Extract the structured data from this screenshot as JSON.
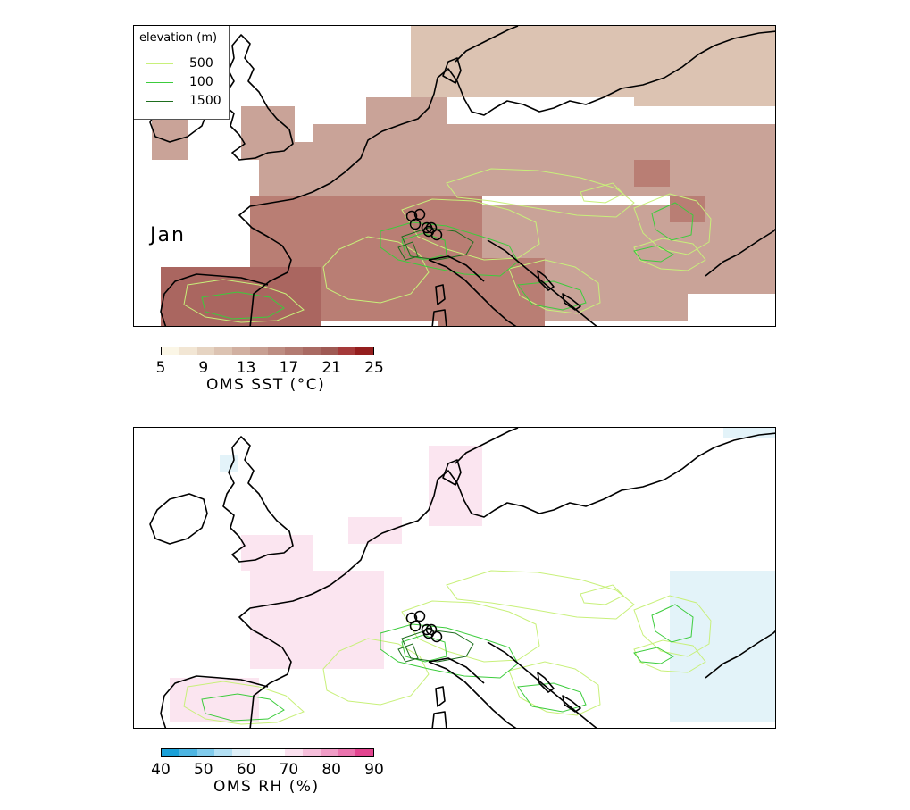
{
  "top_panel": {
    "month_label": "Jan",
    "legend": {
      "title": "elevation (m)",
      "entries": [
        {
          "label": "500",
          "color": "#c8f07a"
        },
        {
          "label": "100",
          "color": "#3ccc3c"
        },
        {
          "label": "1500",
          "color": "#1e6e1e"
        }
      ]
    },
    "colorbar": {
      "label": "OMS SST (°C)",
      "ticks": [
        "5",
        "9",
        "13",
        "17",
        "21",
        "25"
      ],
      "colors": [
        "#fbf6e6",
        "#f2e6d4",
        "#e6d4c2",
        "#dcc3b2",
        "#d1b0a1",
        "#c79f92",
        "#bd8d82",
        "#b37b72",
        "#a96a63",
        "#9f5a54",
        "#a53a3a",
        "#941e1e"
      ]
    }
  },
  "bottom_panel": {
    "colorbar": {
      "label": "OMS RH (%)",
      "ticks": [
        "40",
        "50",
        "60",
        "70",
        "80",
        "90"
      ],
      "colors": [
        "#1aa0d8",
        "#4db5e2",
        "#80cbec",
        "#b3e0f4",
        "#dff0f8",
        "#ffffff",
        "#ffffff",
        "#fbe1ef",
        "#f6bfdb",
        "#f09cc6",
        "#ea74ae",
        "#e2448f"
      ]
    }
  },
  "colors": {
    "sst_tile": "#c9a398",
    "sst_tile_light": "#dcc3b2",
    "sst_tile_dark": "#b97e74",
    "sst_tile_darker": "#aa6660",
    "rh_tile_pink": "#fbe5f0",
    "rh_tile_blue": "#e3f3f9",
    "contour_500": "#c8f07a",
    "contour_100": "#3ccc3c",
    "contour_1500": "#1e6e1e"
  }
}
